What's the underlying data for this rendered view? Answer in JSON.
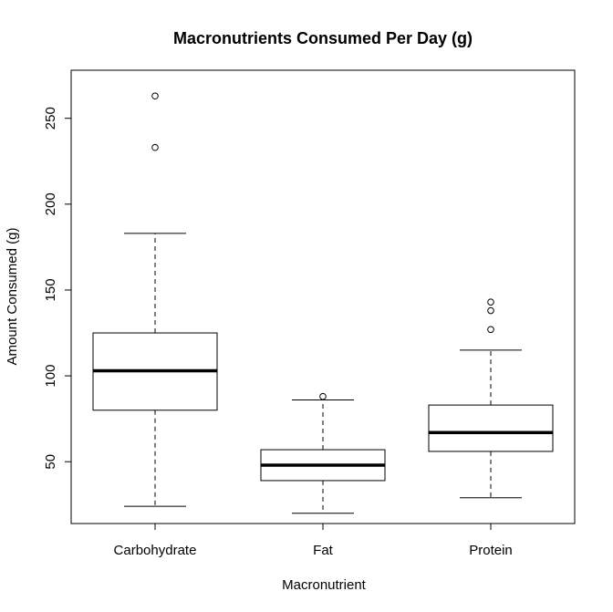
{
  "chart_data": {
    "type": "boxplot",
    "title": "Macronutrients Consumed Per Day (g)",
    "xlabel": "Macronutrient",
    "ylabel": "Amount Consumed (g)",
    "ylim": [
      14,
      278
    ],
    "yticks": [
      50,
      100,
      150,
      200,
      250
    ],
    "grid": false,
    "legend": "none",
    "categories": [
      "Carbohydrate",
      "Fat",
      "Protein"
    ],
    "boxes": [
      {
        "category": "Carbohydrate",
        "min": 24,
        "q1": 80,
        "median": 103,
        "q3": 125,
        "max": 183,
        "outliers": [
          233,
          263
        ]
      },
      {
        "category": "Fat",
        "min": 20,
        "q1": 39,
        "median": 48,
        "q3": 57,
        "max": 86,
        "outliers": [
          88
        ]
      },
      {
        "category": "Protein",
        "min": 29,
        "q1": 56,
        "median": 67,
        "q3": 83,
        "max": 115,
        "outliers": [
          127,
          138,
          143
        ]
      }
    ]
  }
}
